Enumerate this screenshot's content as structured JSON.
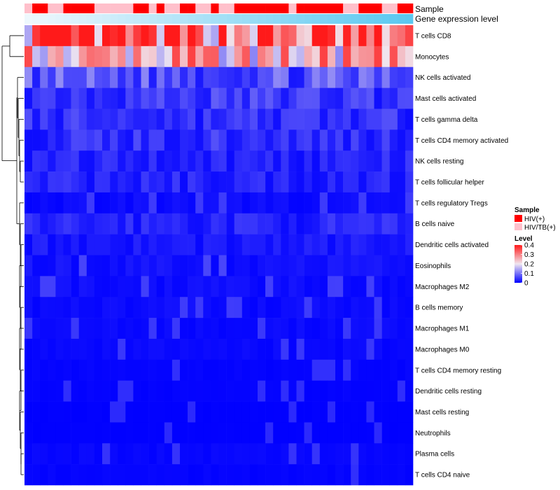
{
  "chart_data": {
    "type": "heatmap",
    "annotation_tracks": [
      {
        "name": "Sample",
        "values": [
          "HIV/TB(+)",
          "HIV(+)",
          "HIV(+)",
          "HIV/TB(+)",
          "HIV/TB(+)",
          "HIV(+)",
          "HIV(+)",
          "HIV(+)",
          "HIV(+)",
          "HIV/TB(+)",
          "HIV/TB(+)",
          "HIV/TB(+)",
          "HIV/TB(+)",
          "HIV/TB(+)",
          "HIV(+)",
          "HIV(+)",
          "HIV/TB(+)",
          "HIV(+)",
          "HIV/TB(+)",
          "HIV/TB(+)",
          "HIV(+)",
          "HIV(+)",
          "HIV/TB(+)",
          "HIV/TB(+)",
          "HIV(+)",
          "HIV/TB(+)",
          "HIV/TB(+)",
          "HIV(+)",
          "HIV(+)",
          "HIV(+)",
          "HIV(+)",
          "HIV(+)",
          "HIV(+)",
          "HIV(+)",
          "HIV/TB(+)",
          "HIV(+)",
          "HIV(+)",
          "HIV(+)",
          "HIV(+)",
          "HIV(+)",
          "HIV(+)",
          "HIV/TB(+)",
          "HIV/TB(+)",
          "HIV(+)",
          "HIV(+)",
          "HIV(+)",
          "HIV/TB(+)",
          "HIV/TB(+)",
          "HIV(+)",
          "HIV(+)"
        ]
      },
      {
        "name": "Gene expression level",
        "gradient": [
          "#eef8fd",
          "#5bc8f0"
        ]
      }
    ],
    "rows": [
      "T cells CD8",
      "Monocytes",
      "NK cells activated",
      "Mast cells activated",
      "T cells gamma delta",
      "T cells CD4 memory activated",
      "NK cells resting",
      "T cells follicular helper",
      "T cells regulatory  Tregs",
      "B cells naive",
      "Dendritic cells activated",
      "Eosinophils",
      "Macrophages M2",
      "B cells memory",
      "Macrophages M1",
      "Macrophages M0",
      "T cells CD4 memory resting",
      "Dendritic cells resting",
      "Mast cells resting",
      "Neutrophils",
      "Plasma cells",
      "T cells CD4 naive"
    ],
    "n_columns": 50,
    "row_levels": [
      0.32,
      0.25,
      0.07,
      0.05,
      0.04,
      0.04,
      0.03,
      0.03,
      0.01,
      0.03,
      0.02,
      0.015,
      0.012,
      0.01,
      0.008,
      0.008,
      0.004,
      0.003,
      0.001,
      0.001,
      0.006,
      0.004
    ],
    "color_scale": {
      "min": 0,
      "max": 0.4,
      "colors": [
        "#0000ff",
        "#f0e6ef",
        "#ff1a1a"
      ],
      "ticks": [
        0.4,
        0.3,
        0.2,
        0.1,
        0
      ]
    },
    "legend": {
      "position": "right",
      "sample_title": "Sample",
      "sample_entries": [
        {
          "label": "HIV(+)",
          "color": "#ff0000"
        },
        {
          "label": "HIV/TB(+)",
          "color": "#ffc0cb"
        }
      ],
      "level_title": "Level",
      "tick_labels": [
        "0.4",
        "0.3",
        "0.2",
        "0.1",
        "0"
      ]
    },
    "row_dendrogram": true
  }
}
